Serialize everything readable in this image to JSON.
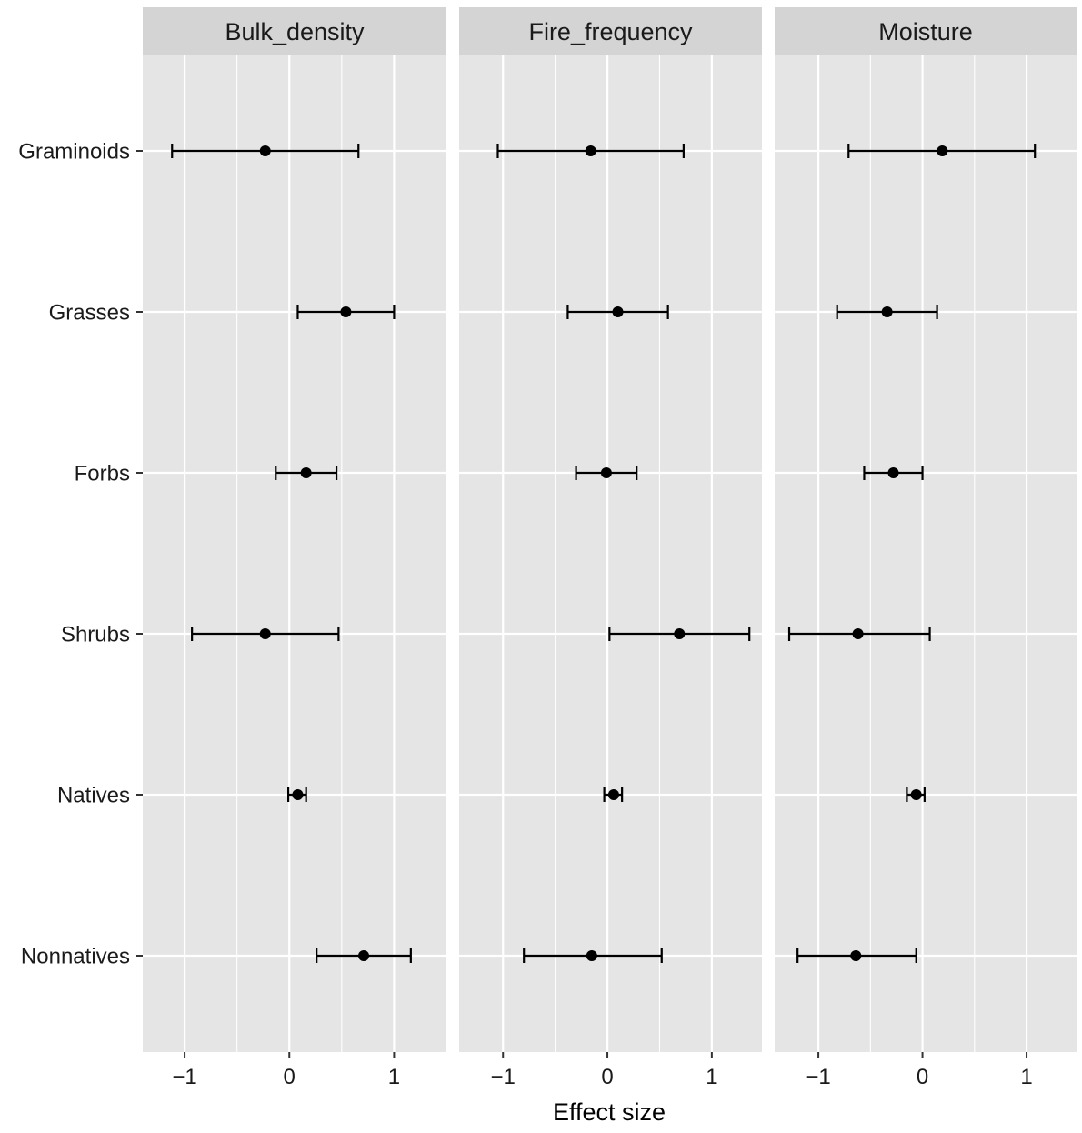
{
  "chart_data": {
    "type": "scatter",
    "subtype": "forest-plot-faceted",
    "xlabel": "Effect size",
    "ylabel": "",
    "categories": [
      "Graminoids",
      "Grasses",
      "Forbs",
      "Shrubs",
      "Natives",
      "Nonnatives"
    ],
    "xticks": [
      -1,
      0,
      1
    ],
    "xtick_labels": [
      "−1",
      "0",
      "1"
    ],
    "grid": true,
    "legend": "none",
    "colors": {
      "panel_bg": "#e5e5e5",
      "strip_bg": "#d4d4d4",
      "grid": "#ffffff",
      "marks": "#000000"
    },
    "facets": [
      {
        "name": "Bulk_density",
        "xlim": [
          -1.4,
          1.5
        ],
        "points": [
          {
            "category": "Graminoids",
            "estimate": -0.23,
            "lower": -1.12,
            "upper": 0.66
          },
          {
            "category": "Grasses",
            "estimate": 0.54,
            "lower": 0.08,
            "upper": 1.0
          },
          {
            "category": "Forbs",
            "estimate": 0.16,
            "lower": -0.13,
            "upper": 0.45
          },
          {
            "category": "Shrubs",
            "estimate": -0.23,
            "lower": -0.93,
            "upper": 0.47
          },
          {
            "category": "Natives",
            "estimate": 0.08,
            "lower": -0.01,
            "upper": 0.16
          },
          {
            "category": "Nonnatives",
            "estimate": 0.71,
            "lower": 0.26,
            "upper": 1.16
          }
        ]
      },
      {
        "name": "Fire_frequency",
        "xlim": [
          -1.42,
          1.48
        ],
        "points": [
          {
            "category": "Graminoids",
            "estimate": -0.16,
            "lower": -1.05,
            "upper": 0.73
          },
          {
            "category": "Grasses",
            "estimate": 0.1,
            "lower": -0.38,
            "upper": 0.58
          },
          {
            "category": "Forbs",
            "estimate": -0.01,
            "lower": -0.3,
            "upper": 0.28
          },
          {
            "category": "Shrubs",
            "estimate": 0.69,
            "lower": 0.02,
            "upper": 1.36
          },
          {
            "category": "Natives",
            "estimate": 0.06,
            "lower": -0.03,
            "upper": 0.14
          },
          {
            "category": "Nonnatives",
            "estimate": -0.15,
            "lower": -0.8,
            "upper": 0.52
          }
        ]
      },
      {
        "name": "Moisture",
        "xlim": [
          -1.42,
          1.48
        ],
        "points": [
          {
            "category": "Graminoids",
            "estimate": 0.19,
            "lower": -0.71,
            "upper": 1.08
          },
          {
            "category": "Grasses",
            "estimate": -0.34,
            "lower": -0.82,
            "upper": 0.14
          },
          {
            "category": "Forbs",
            "estimate": -0.28,
            "lower": -0.56,
            "upper": 0.0
          },
          {
            "category": "Shrubs",
            "estimate": -0.62,
            "lower": -1.28,
            "upper": 0.07
          },
          {
            "category": "Natives",
            "estimate": -0.06,
            "lower": -0.15,
            "upper": 0.02
          },
          {
            "category": "Nonnatives",
            "estimate": -0.64,
            "lower": -1.2,
            "upper": -0.06
          }
        ]
      }
    ]
  }
}
